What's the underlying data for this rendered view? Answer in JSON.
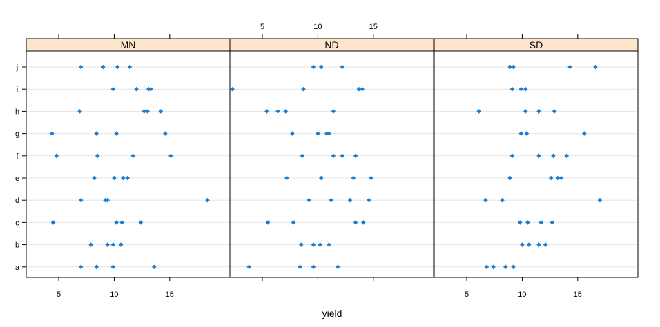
{
  "chart_data": {
    "type": "scatter",
    "layout": "trellis-dotplot",
    "xlabel": "yield",
    "ylabel": "",
    "xlim": [
      2.2,
      20.3
    ],
    "xticks": [
      5,
      10,
      15
    ],
    "y_categories": [
      "a",
      "b",
      "c",
      "d",
      "e",
      "f",
      "g",
      "h",
      "i",
      "j"
    ],
    "grid": true,
    "point_color": "#1a7fd4",
    "strip_color": "#ffe5cc",
    "panels": [
      {
        "name": "MN",
        "points": [
          {
            "y": "a",
            "x": 7.0
          },
          {
            "y": "a",
            "x": 8.4
          },
          {
            "y": "a",
            "x": 9.9
          },
          {
            "y": "a",
            "x": 13.6
          },
          {
            "y": "b",
            "x": 7.9
          },
          {
            "y": "b",
            "x": 9.4
          },
          {
            "y": "b",
            "x": 9.9
          },
          {
            "y": "b",
            "x": 10.6
          },
          {
            "y": "c",
            "x": 4.5
          },
          {
            "y": "c",
            "x": 10.2
          },
          {
            "y": "c",
            "x": 10.7
          },
          {
            "y": "c",
            "x": 12.4
          },
          {
            "y": "d",
            "x": 7.0
          },
          {
            "y": "d",
            "x": 9.2
          },
          {
            "y": "d",
            "x": 9.4
          },
          {
            "y": "d",
            "x": 18.4
          },
          {
            "y": "e",
            "x": 8.2
          },
          {
            "y": "e",
            "x": 10.0
          },
          {
            "y": "e",
            "x": 10.8
          },
          {
            "y": "e",
            "x": 11.2
          },
          {
            "y": "f",
            "x": 4.8
          },
          {
            "y": "f",
            "x": 8.5
          },
          {
            "y": "f",
            "x": 11.7
          },
          {
            "y": "f",
            "x": 15.1
          },
          {
            "y": "g",
            "x": 4.4
          },
          {
            "y": "g",
            "x": 8.4
          },
          {
            "y": "g",
            "x": 10.2
          },
          {
            "y": "g",
            "x": 14.6
          },
          {
            "y": "h",
            "x": 6.9
          },
          {
            "y": "h",
            "x": 12.7
          },
          {
            "y": "h",
            "x": 13.0
          },
          {
            "y": "h",
            "x": 14.2
          },
          {
            "y": "i",
            "x": 9.9
          },
          {
            "y": "i",
            "x": 12.0
          },
          {
            "y": "i",
            "x": 13.1
          },
          {
            "y": "i",
            "x": 13.3
          },
          {
            "y": "j",
            "x": 7.0
          },
          {
            "y": "j",
            "x": 9.0
          },
          {
            "y": "j",
            "x": 10.3
          },
          {
            "y": "j",
            "x": 11.4
          }
        ]
      },
      {
        "name": "ND",
        "points": [
          {
            "y": "a",
            "x": 3.8
          },
          {
            "y": "a",
            "x": 8.4
          },
          {
            "y": "a",
            "x": 9.6
          },
          {
            "y": "a",
            "x": 11.8
          },
          {
            "y": "b",
            "x": 8.5
          },
          {
            "y": "b",
            "x": 9.6
          },
          {
            "y": "b",
            "x": 10.2
          },
          {
            "y": "b",
            "x": 11.0
          },
          {
            "y": "c",
            "x": 5.5
          },
          {
            "y": "c",
            "x": 7.8
          },
          {
            "y": "c",
            "x": 13.4
          },
          {
            "y": "c",
            "x": 14.1
          },
          {
            "y": "d",
            "x": 9.2
          },
          {
            "y": "d",
            "x": 11.2
          },
          {
            "y": "d",
            "x": 12.9
          },
          {
            "y": "d",
            "x": 14.6
          },
          {
            "y": "e",
            "x": 7.2
          },
          {
            "y": "e",
            "x": 10.3
          },
          {
            "y": "e",
            "x": 13.2
          },
          {
            "y": "e",
            "x": 14.8
          },
          {
            "y": "f",
            "x": 8.6
          },
          {
            "y": "f",
            "x": 11.4
          },
          {
            "y": "f",
            "x": 12.2
          },
          {
            "y": "f",
            "x": 13.4
          },
          {
            "y": "g",
            "x": 7.7
          },
          {
            "y": "g",
            "x": 10.0
          },
          {
            "y": "g",
            "x": 10.8
          },
          {
            "y": "g",
            "x": 11.0
          },
          {
            "y": "h",
            "x": 5.4
          },
          {
            "y": "h",
            "x": 6.4
          },
          {
            "y": "h",
            "x": 7.1
          },
          {
            "y": "h",
            "x": 11.4
          },
          {
            "y": "i",
            "x": 2.3
          },
          {
            "y": "i",
            "x": 8.7
          },
          {
            "y": "i",
            "x": 13.7
          },
          {
            "y": "i",
            "x": 14.0
          },
          {
            "y": "j",
            "x": 9.6
          },
          {
            "y": "j",
            "x": 10.3
          },
          {
            "y": "j",
            "x": 12.2
          }
        ]
      },
      {
        "name": "SD",
        "points": [
          {
            "y": "a",
            "x": 6.8
          },
          {
            "y": "a",
            "x": 7.4
          },
          {
            "y": "a",
            "x": 8.5
          },
          {
            "y": "a",
            "x": 9.2
          },
          {
            "y": "b",
            "x": 10.0
          },
          {
            "y": "b",
            "x": 10.6
          },
          {
            "y": "b",
            "x": 11.5
          },
          {
            "y": "b",
            "x": 12.1
          },
          {
            "y": "c",
            "x": 9.8
          },
          {
            "y": "c",
            "x": 10.5
          },
          {
            "y": "c",
            "x": 11.7
          },
          {
            "y": "c",
            "x": 12.7
          },
          {
            "y": "d",
            "x": 6.7
          },
          {
            "y": "d",
            "x": 8.2
          },
          {
            "y": "d",
            "x": 17.0
          },
          {
            "y": "e",
            "x": 8.9
          },
          {
            "y": "e",
            "x": 12.6
          },
          {
            "y": "e",
            "x": 13.2
          },
          {
            "y": "e",
            "x": 13.5
          },
          {
            "y": "f",
            "x": 9.1
          },
          {
            "y": "f",
            "x": 11.5
          },
          {
            "y": "f",
            "x": 12.8
          },
          {
            "y": "f",
            "x": 14.0
          },
          {
            "y": "g",
            "x": 9.9
          },
          {
            "y": "g",
            "x": 10.4
          },
          {
            "y": "g",
            "x": 15.6
          },
          {
            "y": "h",
            "x": 6.1
          },
          {
            "y": "h",
            "x": 10.3
          },
          {
            "y": "h",
            "x": 11.5
          },
          {
            "y": "h",
            "x": 12.9
          },
          {
            "y": "i",
            "x": 9.1
          },
          {
            "y": "i",
            "x": 9.9
          },
          {
            "y": "i",
            "x": 10.3
          },
          {
            "y": "j",
            "x": 8.9
          },
          {
            "y": "j",
            "x": 9.2
          },
          {
            "y": "j",
            "x": 14.3
          },
          {
            "y": "j",
            "x": 16.6
          }
        ]
      }
    ]
  }
}
